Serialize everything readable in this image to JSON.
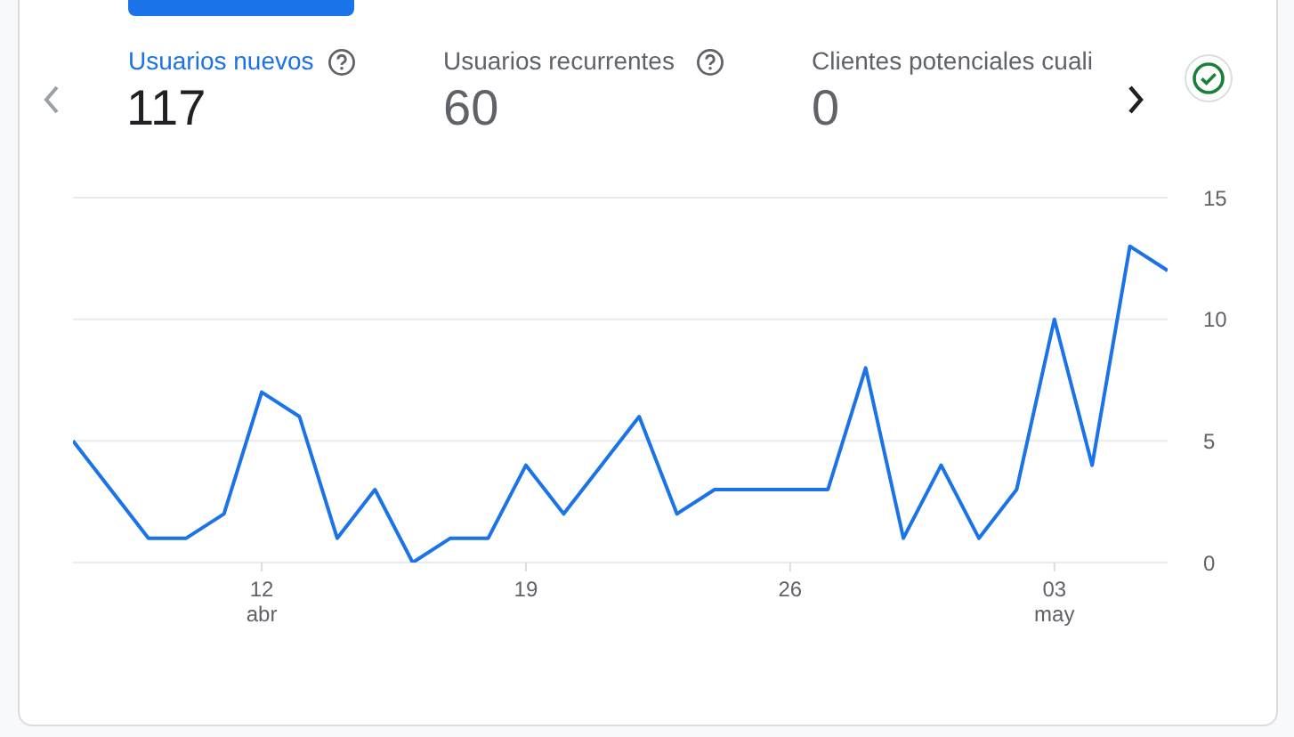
{
  "chart_data": {
    "type": "line",
    "x": [
      "--04-07",
      "--04-08",
      "--04-09",
      "--04-10",
      "--04-11",
      "--04-12",
      "--04-13",
      "--04-14",
      "--04-15",
      "--04-16",
      "--04-17",
      "--04-18",
      "--04-19",
      "--04-20",
      "--04-21",
      "--04-22",
      "--04-23",
      "--04-24",
      "--04-25",
      "--04-26",
      "--04-27",
      "--04-28",
      "--04-29",
      "--04-30",
      "--05-01",
      "--05-02",
      "--05-03",
      "--05-04",
      "--05-05",
      "--05-06"
    ],
    "series": [
      {
        "name": "Usuarios nuevos",
        "color": "#1a73e8",
        "values": [
          5,
          3,
          1,
          1,
          2,
          7,
          6,
          1,
          3,
          0,
          1,
          1,
          4,
          2,
          4,
          6,
          2,
          3,
          3,
          3,
          3,
          8,
          1,
          4,
          1,
          3,
          10,
          4,
          13,
          12
        ]
      }
    ],
    "annotations": [
      "117",
      "Usuarios recurrentes",
      "60",
      "Clientes potenciales cuali",
      "0"
    ],
    "xlim": [
      "--04-07",
      "--05-06"
    ],
    "xticks": [
      {
        "value": "--04-12",
        "label": "12\nabr"
      },
      {
        "value": "--04-19",
        "label": "19"
      },
      {
        "value": "--04-26",
        "label": "26"
      },
      {
        "value": "--05-03",
        "label": "03\nmay"
      }
    ],
    "ylim": [
      0,
      15
    ],
    "yticks": [
      0,
      5,
      10,
      15
    ],
    "grid": "y",
    "marker": "none",
    "line_style": "solid"
  }
}
